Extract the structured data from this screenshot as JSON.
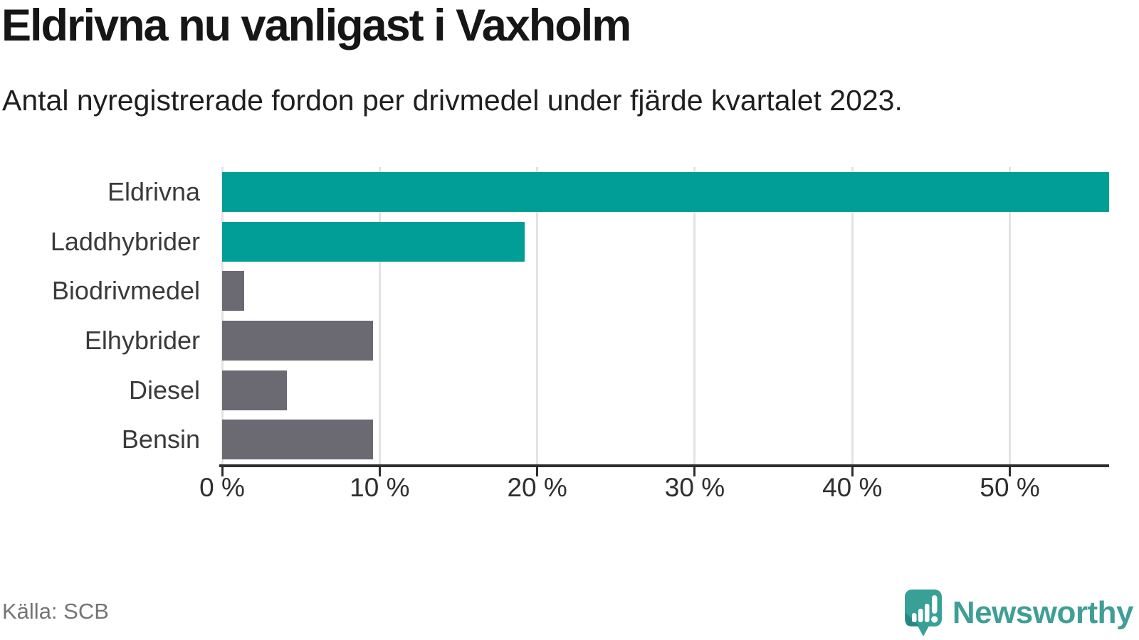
{
  "header": {
    "title": "Eldrivna nu vanligast i Vaxholm",
    "subtitle": "Antal nyregistrerade fordon per drivmedel under fjärde kvartalet 2023."
  },
  "chart_data": {
    "type": "bar",
    "orientation": "horizontal",
    "title": "Eldrivna nu vanligast i Vaxholm",
    "subtitle": "Antal nyregistrerade fordon per drivmedel under fjärde kvartalet 2023.",
    "categories": [
      "Eldrivna",
      "Laddhybrider",
      "Biodrivmedel",
      "Elhybrider",
      "Diesel",
      "Bensin"
    ],
    "values": [
      56.3,
      19.2,
      1.4,
      9.6,
      4.1,
      9.6
    ],
    "unit": "%",
    "bar_colors": [
      "#009e96",
      "#009e96",
      "#6b6a72",
      "#6b6a72",
      "#6b6a72",
      "#6b6a72"
    ],
    "xlim": [
      0,
      56.3
    ],
    "xticks": {
      "values": [
        0,
        10,
        20,
        30,
        40,
        50
      ],
      "labels": [
        "0 %",
        "10 %",
        "20 %",
        "30 %",
        "40 %",
        "50 %"
      ]
    },
    "grid": "vertical",
    "legend": "none",
    "xlabel": "",
    "ylabel": ""
  },
  "footer": {
    "source": "Källa: SCB",
    "brand": "Newsworthy"
  },
  "colors": {
    "accent_teal": "#009e96",
    "neutral_gray": "#6b6a72",
    "logo_teal": "#38a096",
    "logo_teal_dark": "#258780",
    "axis": "#2e2e2e",
    "gridline": "#e3e3e3",
    "text_dark": "#161616",
    "text_muted": "#757575"
  }
}
